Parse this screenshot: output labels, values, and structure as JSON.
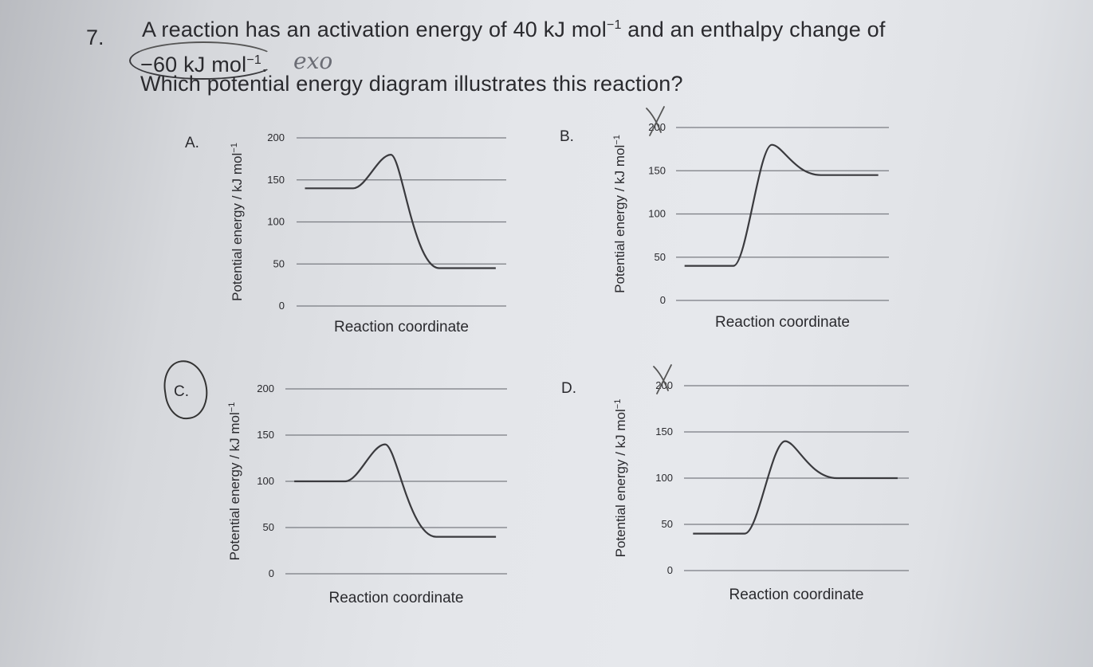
{
  "question": {
    "number": "7.",
    "line1_a": "A reaction has an activation energy of 40",
    "line1_unit": "kJ mol",
    "line1_sup": "−1",
    "line1_b": " and an enthalpy change of",
    "line2": "−60 kJ mol",
    "line2_sup": "−1",
    "line2_end": ".",
    "line3": "Which potential energy diagram illustrates this reaction?",
    "handwritten_note": "exo"
  },
  "chart_data": [
    {
      "label": "A.",
      "type": "line",
      "xlabel": "Reaction coordinate",
      "ylabel": "Potential energy / kJ mol",
      "ylabel_sup": "−1",
      "yticks": [
        "200",
        "150",
        "100",
        "50",
        "0"
      ],
      "ylim": [
        0,
        200
      ],
      "reactant": 140,
      "peak": 180,
      "product": 45
    },
    {
      "label": "B.",
      "type": "line",
      "xlabel": "Reaction coordinate",
      "ylabel": "Potential energy / kJ mol",
      "ylabel_sup": "−1",
      "yticks": [
        "200",
        "150",
        "100",
        "50",
        "0"
      ],
      "ylim": [
        0,
        200
      ],
      "reactant": 40,
      "peak": 180,
      "product": 145,
      "marked": "cross"
    },
    {
      "label": "C.",
      "type": "line",
      "xlabel": "Reaction coordinate",
      "ylabel": "Potential energy / kJ mol",
      "ylabel_sup": "−1",
      "yticks": [
        "200",
        "150",
        "100",
        "50",
        "0"
      ],
      "ylim": [
        0,
        200
      ],
      "reactant": 100,
      "peak": 140,
      "product": 40,
      "marked": "circle"
    },
    {
      "label": "D.",
      "type": "line",
      "xlabel": "Reaction coordinate",
      "ylabel": "Potential energy / kJ mol",
      "ylabel_sup": "−1",
      "yticks": [
        "200",
        "150",
        "100",
        "50",
        "0"
      ],
      "ylim": [
        0,
        200
      ],
      "reactant": 40,
      "peak": 140,
      "product": 100,
      "marked": "cross"
    }
  ]
}
